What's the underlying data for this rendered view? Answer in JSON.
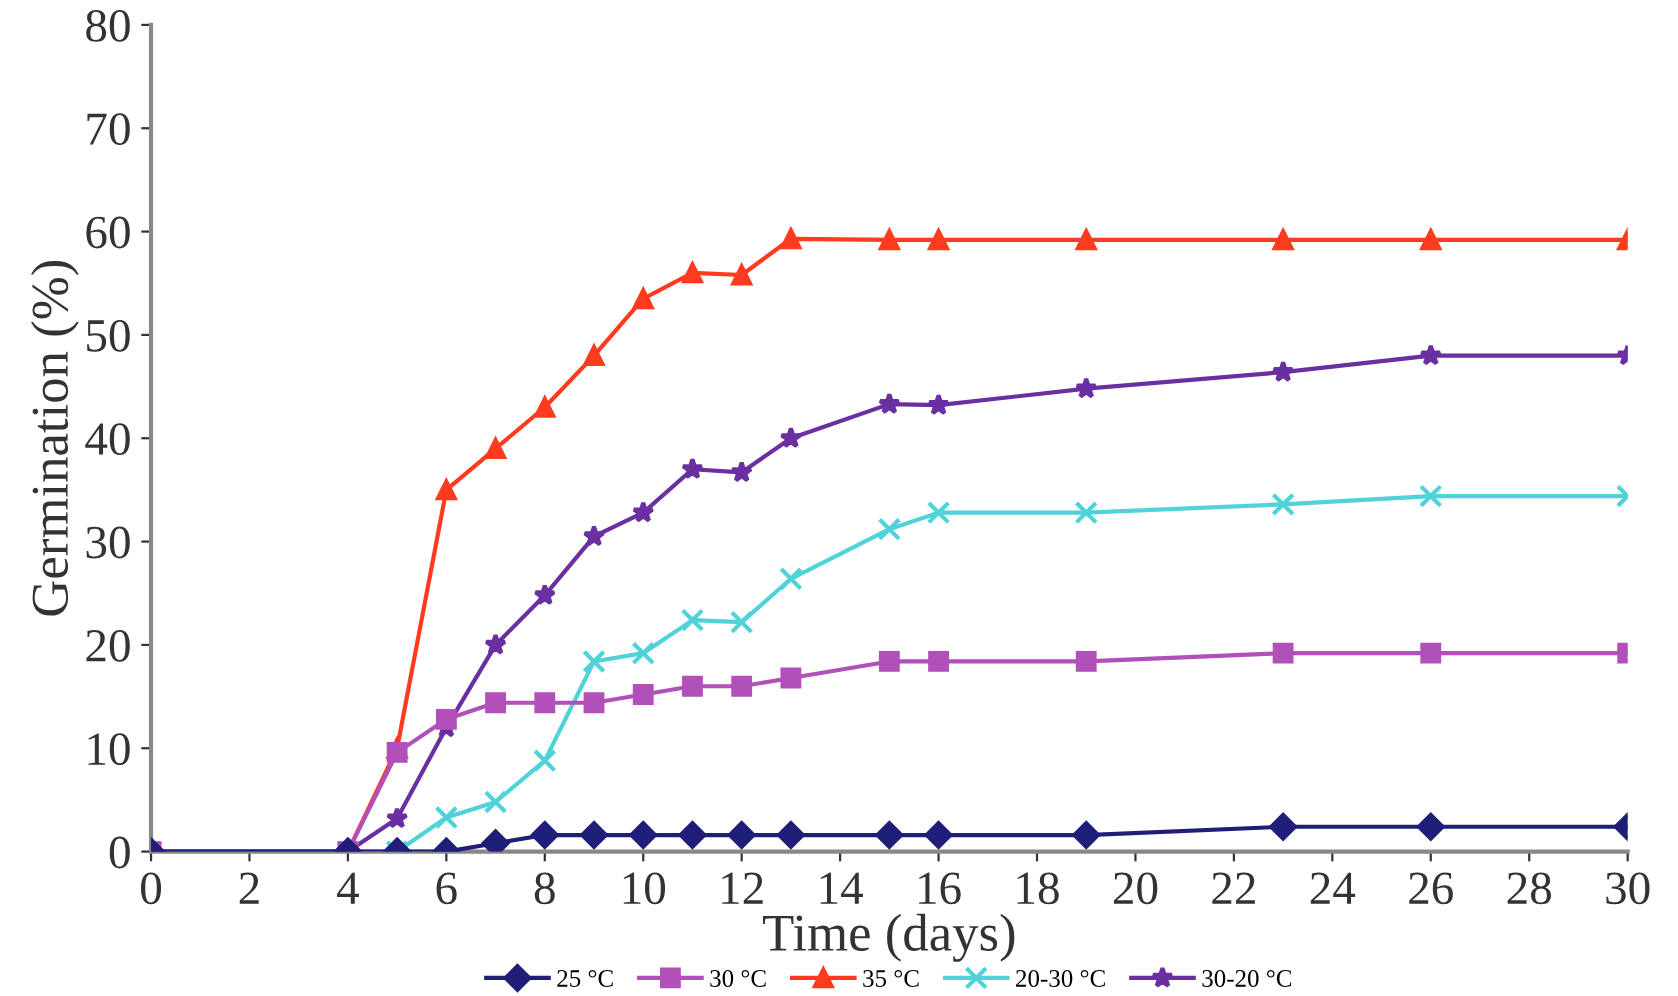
{
  "chart_data": {
    "type": "line",
    "xlabel": "Time (days)",
    "ylabel": "Germination (%)",
    "x": [
      0,
      4,
      5,
      6,
      7,
      8,
      9,
      10,
      11,
      12,
      13,
      15,
      16,
      19,
      23,
      26,
      30
    ],
    "xlim": [
      0,
      30
    ],
    "xticks": [
      0,
      2,
      4,
      6,
      8,
      10,
      12,
      14,
      16,
      18,
      20,
      22,
      24,
      26,
      28,
      30
    ],
    "ylim": [
      0,
      80
    ],
    "yticks": [
      0,
      10,
      20,
      30,
      40,
      50,
      60,
      70,
      80
    ],
    "grid": false,
    "legend": "bottom",
    "line_style": "solid",
    "series": [
      {
        "name": "25 °C",
        "color": "#1f1f7a",
        "marker": "diamond",
        "values": [
          0,
          0,
          0,
          0,
          0.8,
          1.6,
          1.6,
          1.6,
          1.6,
          1.6,
          1.6,
          1.6,
          1.6,
          1.6,
          2.4,
          2.4,
          2.4
        ]
      },
      {
        "name": "30 °C",
        "color": "#b050b8",
        "marker": "square",
        "values": [
          0,
          0,
          9.6,
          12.8,
          14.4,
          14.4,
          14.4,
          15.2,
          16,
          16,
          16.8,
          18.4,
          18.4,
          18.4,
          19.2,
          19.2,
          19.2
        ]
      },
      {
        "name": "35 °C",
        "color": "#ff3b1f",
        "marker": "triangle",
        "values": [
          0,
          0,
          10,
          35,
          39,
          43,
          48,
          53.5,
          56,
          55.8,
          59.3,
          59.2,
          59.2,
          59.2,
          59.2,
          59.2,
          59.2
        ]
      },
      {
        "name": "20-30 °C",
        "color": "#4fd3d9",
        "marker": "cross",
        "values": [
          0,
          0,
          0,
          3.3,
          4.8,
          8.8,
          18.4,
          19.2,
          22.4,
          22.2,
          26.4,
          31.2,
          32.8,
          32.8,
          33.6,
          34.4,
          34.4
        ]
      },
      {
        "name": "30-20 °C",
        "color": "#6a2fa0",
        "marker": "star",
        "values": [
          0,
          0,
          3.2,
          12,
          20,
          24.8,
          30.5,
          32.8,
          37,
          36.7,
          40,
          43.3,
          43.2,
          44.8,
          46.4,
          48,
          48
        ]
      }
    ]
  }
}
